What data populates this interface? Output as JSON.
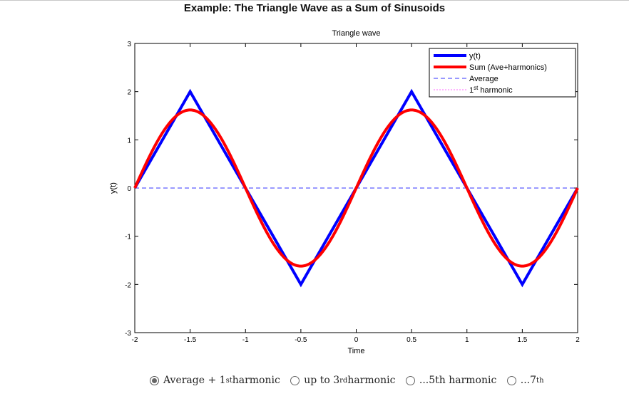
{
  "page": {
    "title": "Example: The Triangle Wave as a Sum of Sinusoids"
  },
  "chart_data": {
    "type": "line",
    "title": "Triangle wave",
    "xlabel": "Time",
    "ylabel": "y(t)",
    "xlim": [
      -2,
      2
    ],
    "ylim": [
      -3,
      3
    ],
    "xticks": [
      "-2",
      "-1.5",
      "-1",
      "-0.5",
      "0",
      "0.5",
      "1",
      "1.5",
      "2"
    ],
    "yticks": [
      "-3",
      "-2",
      "-1",
      "0",
      "1",
      "2",
      "3"
    ],
    "grid": false,
    "legend_position": "top-right",
    "series": [
      {
        "name": "y(t)",
        "color": "#0000ff",
        "style": "solid",
        "x": [
          -2,
          -1.5,
          -1,
          -0.5,
          0,
          0.5,
          1,
          1.5,
          2
        ],
        "y": [
          0,
          2,
          0,
          -2,
          0,
          2,
          0,
          -2,
          0
        ]
      },
      {
        "name": "Sum (Ave+harmonics)",
        "color": "#ff0000",
        "style": "solid",
        "x": [
          -2,
          -1.75,
          -1.5,
          -1.25,
          -1,
          -0.75,
          -0.5,
          -0.25,
          0,
          0.25,
          0.5,
          0.75,
          1,
          1.25,
          1.5,
          1.75,
          2
        ],
        "y": [
          0,
          1.15,
          1.62,
          1.15,
          0,
          -1.15,
          -1.62,
          -1.15,
          0,
          1.15,
          1.62,
          1.15,
          0,
          -1.15,
          -1.62,
          -1.15,
          0
        ]
      },
      {
        "name": "Average",
        "color": "#3333ff",
        "style": "dashed",
        "x": [
          -2,
          2
        ],
        "y": [
          0,
          0
        ]
      },
      {
        "name": "1st harmonic",
        "color": "#ff66ff",
        "style": "dotted",
        "x": [],
        "y": []
      }
    ],
    "legend": {
      "items": [
        {
          "label": "y(t)"
        },
        {
          "label": "Sum (Ave+harmonics)"
        },
        {
          "label": "Average"
        },
        {
          "label_pre": "1",
          "label_sup": "st",
          "label_post": " harmonic"
        }
      ]
    }
  },
  "options": [
    {
      "pre": "Average + 1",
      "sup": "st",
      "post": " harmonic",
      "checked": true
    },
    {
      "pre": "up to 3",
      "sup": "rd",
      "post": " harmonic",
      "checked": false
    },
    {
      "pre": "...5th harmonic",
      "sup": "",
      "post": "",
      "checked": false
    },
    {
      "pre": "...7",
      "sup": "th",
      "post": "",
      "checked": false
    }
  ]
}
